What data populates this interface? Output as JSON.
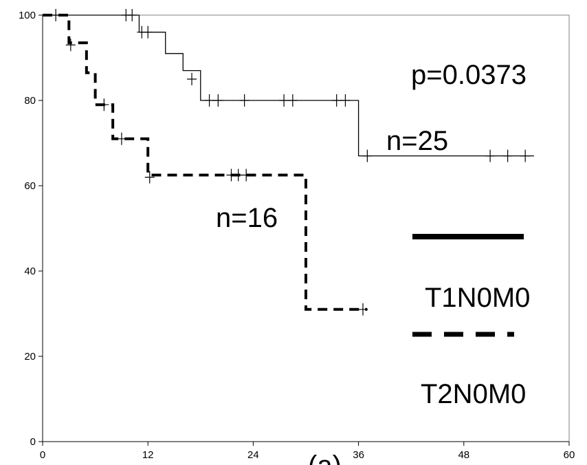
{
  "chart_data": {
    "type": "line",
    "title": "",
    "xlabel": "",
    "ylabel": "",
    "xlim": [
      0,
      60
    ],
    "ylim": [
      0,
      100
    ],
    "x_ticks": [
      "0",
      "12",
      "24",
      "36",
      "48",
      "60"
    ],
    "y_ticks": [
      "0",
      "20",
      "40",
      "60",
      "80",
      "100"
    ],
    "grid": false,
    "legend_position": "right",
    "annotations": {
      "p_value": "p=0.0373",
      "n_t1": "n=25",
      "n_t2": "n=16",
      "bottom_partial": "(a)"
    },
    "series": [
      {
        "name": "T1N0M0",
        "line_style": "solid",
        "color": "#000000",
        "steps": [
          [
            0,
            100
          ],
          [
            11,
            100
          ],
          [
            11,
            96
          ],
          [
            14,
            96
          ],
          [
            14,
            91
          ],
          [
            16,
            91
          ],
          [
            16,
            87
          ],
          [
            18,
            87
          ],
          [
            18,
            80
          ],
          [
            36,
            80
          ],
          [
            36,
            67
          ],
          [
            56,
            67
          ]
        ],
        "censored": [
          [
            9.5,
            100
          ],
          [
            10.2,
            100
          ],
          [
            11.3,
            96
          ],
          [
            12,
            96
          ],
          [
            17,
            85
          ],
          [
            19,
            80
          ],
          [
            20,
            80
          ],
          [
            23,
            80
          ],
          [
            27.5,
            80
          ],
          [
            28.5,
            80
          ],
          [
            33.5,
            80
          ],
          [
            34.5,
            80
          ],
          [
            37,
            67
          ],
          [
            51,
            67
          ],
          [
            53,
            67
          ],
          [
            55,
            67
          ]
        ]
      },
      {
        "name": "T2N0M0",
        "line_style": "dashed",
        "color": "#000000",
        "steps": [
          [
            0,
            100
          ],
          [
            3,
            100
          ],
          [
            3,
            93.5
          ],
          [
            5,
            93.5
          ],
          [
            5,
            86.5
          ],
          [
            6,
            86.5
          ],
          [
            6,
            79
          ],
          [
            8,
            79
          ],
          [
            8,
            71
          ],
          [
            12,
            71
          ],
          [
            12,
            62.5
          ],
          [
            30,
            62.5
          ],
          [
            30,
            31
          ],
          [
            37,
            31
          ]
        ],
        "censored": [
          [
            1.5,
            100
          ],
          [
            3.2,
            93
          ],
          [
            7,
            79
          ],
          [
            9,
            71
          ],
          [
            12.2,
            62
          ],
          [
            21.5,
            62.5
          ],
          [
            22.3,
            62.5
          ],
          [
            23.2,
            62.5
          ],
          [
            36.5,
            31
          ]
        ]
      }
    ]
  }
}
